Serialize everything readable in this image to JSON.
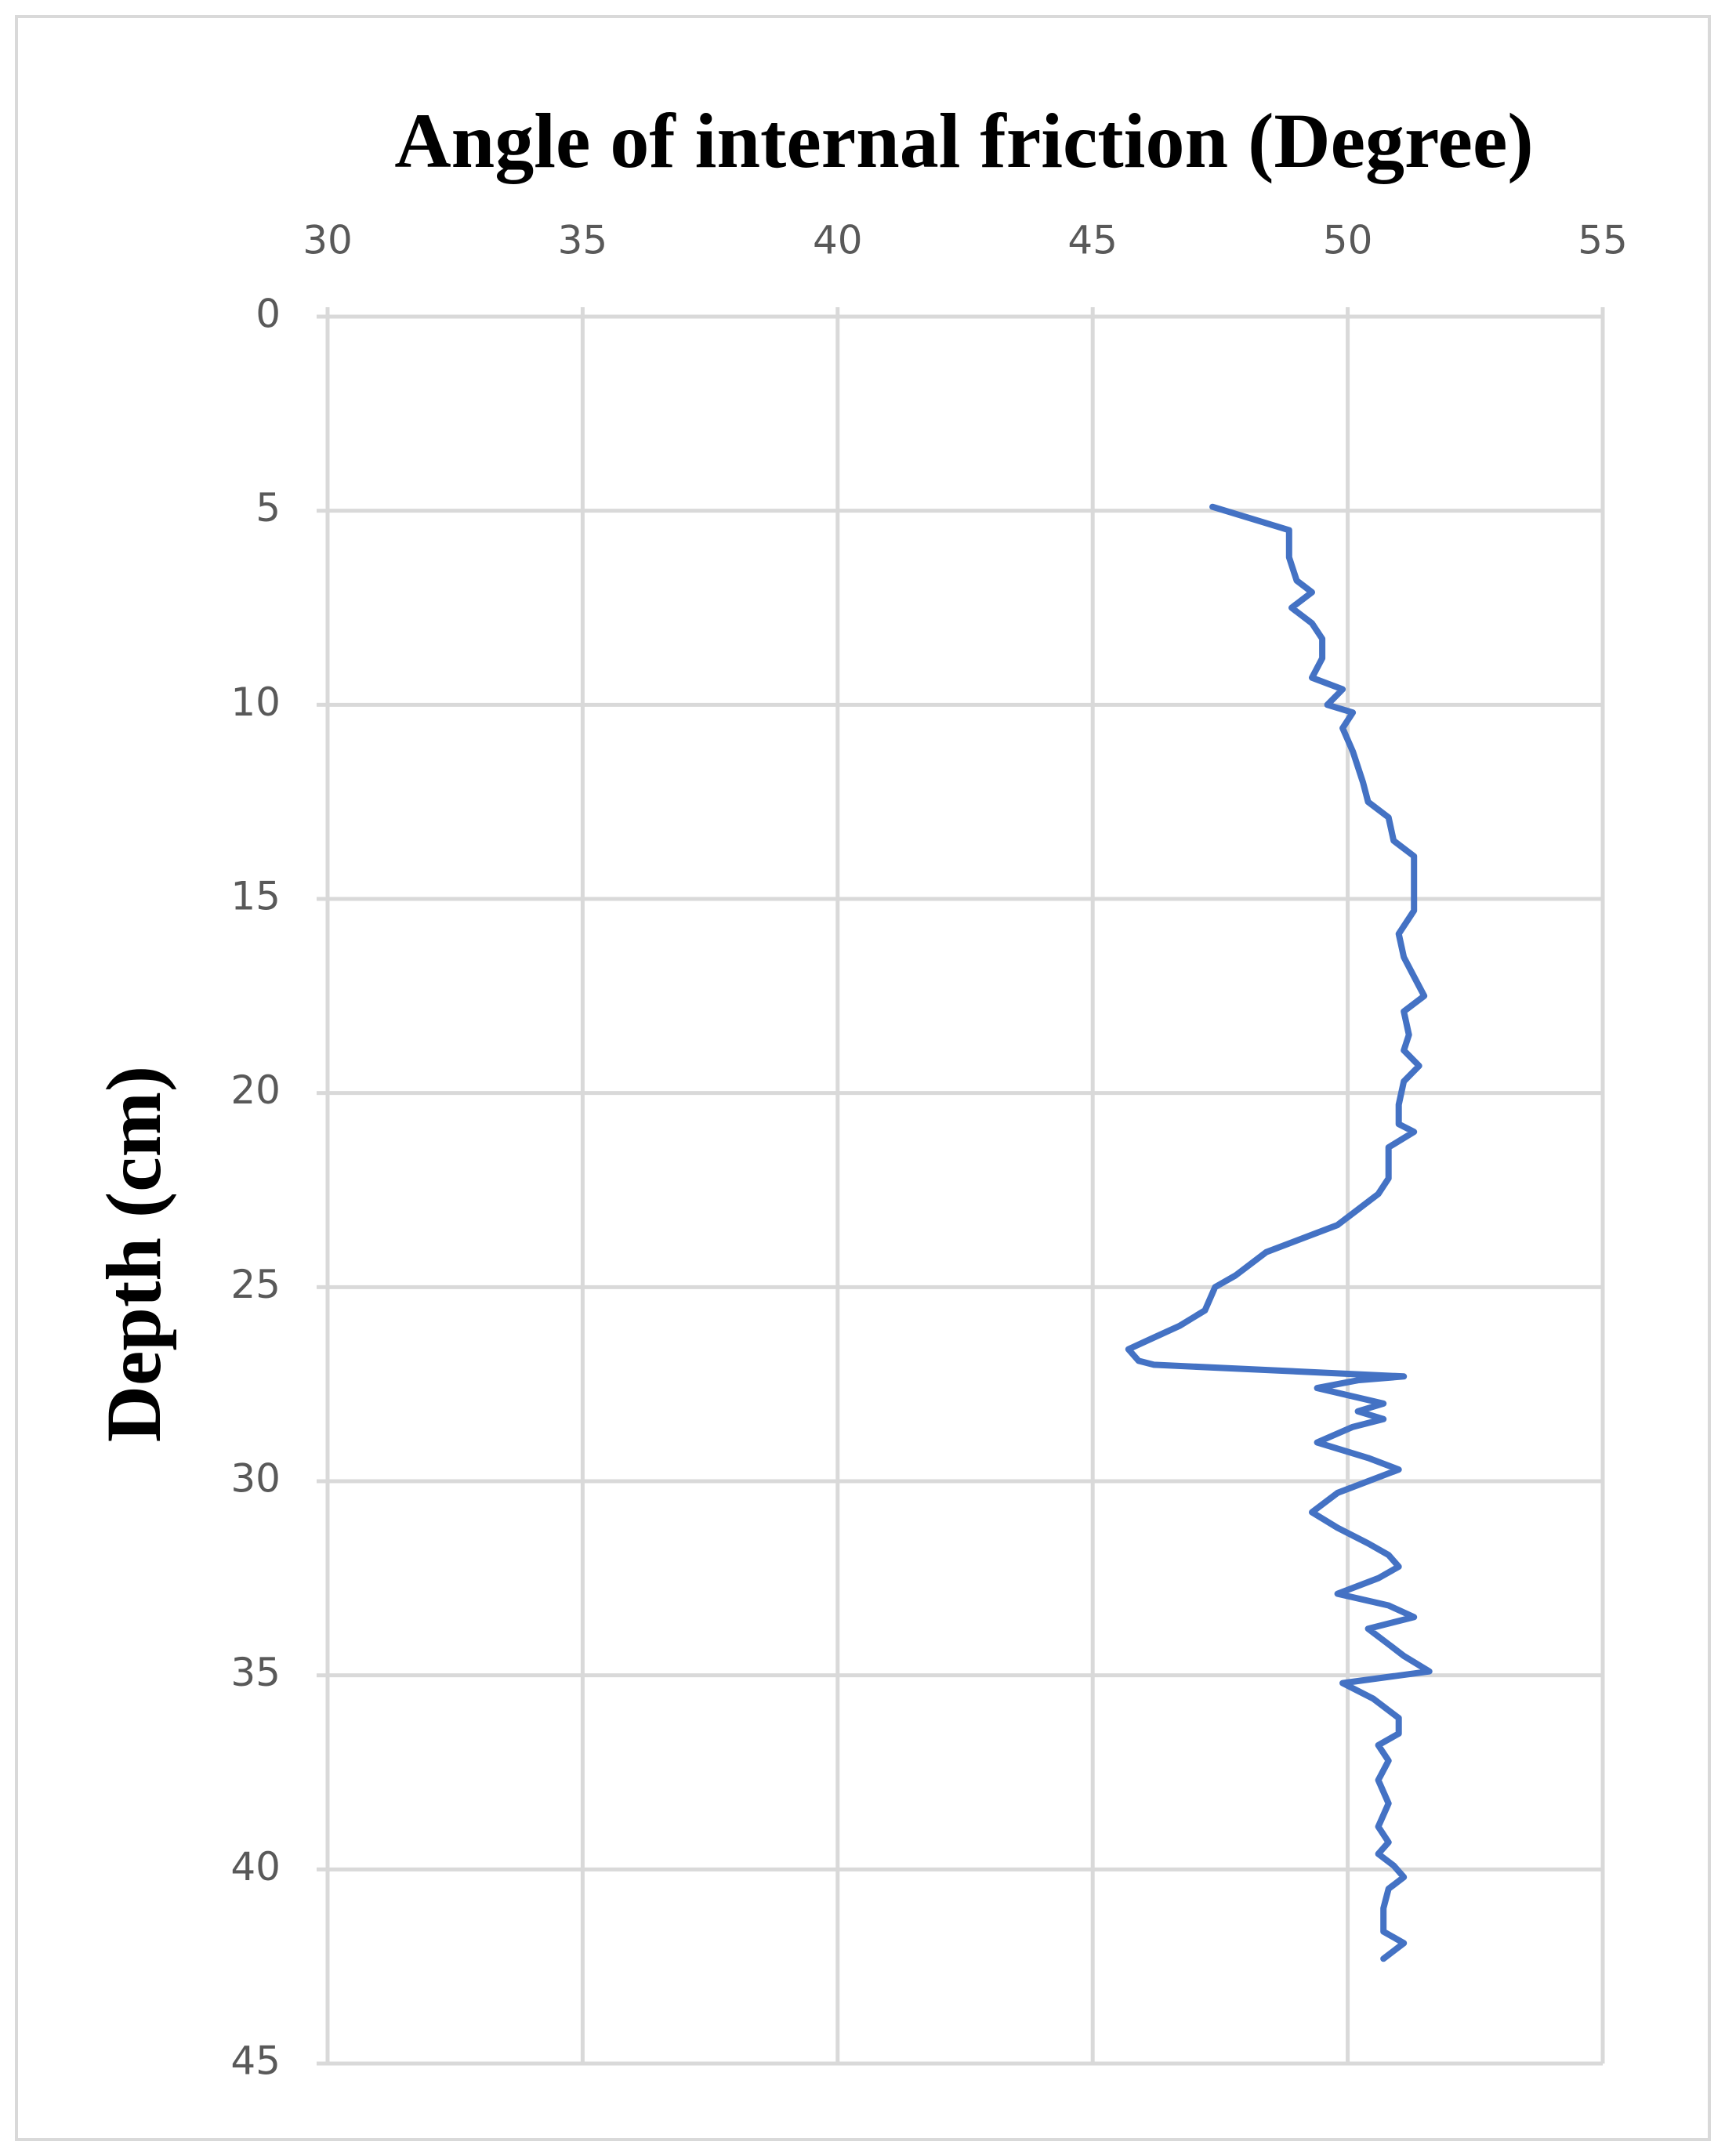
{
  "chart_data": {
    "type": "line",
    "title": "Angle of internal friction (Degree)",
    "ylabel": "Depth (cm)",
    "xlim": [
      30,
      55
    ],
    "xticks": [
      30,
      35,
      40,
      45,
      50,
      55
    ],
    "ylim": [
      0,
      45
    ],
    "yticks": [
      0,
      5,
      10,
      15,
      20,
      25,
      30,
      35,
      40,
      45
    ],
    "y_inverted": true,
    "x_axis_position": "top",
    "grid": true,
    "color": "#4472c4",
    "x": [
      47.35,
      48.85,
      48.85,
      49.0,
      49.3,
      48.9,
      49.3,
      49.5,
      49.5,
      49.3,
      49.9,
      49.6,
      50.1,
      49.9,
      50.1,
      50.3,
      50.4,
      50.8,
      50.9,
      51.3,
      51.3,
      51.3,
      51.0,
      51.1,
      51.3,
      51.5,
      51.1,
      51.2,
      51.1,
      51.4,
      51.1,
      51.0,
      51.0,
      51.3,
      50.8,
      50.8,
      50.6,
      50.2,
      49.8,
      49.4,
      48.4,
      48.2,
      47.8,
      47.4,
      47.2,
      46.7,
      46.2,
      45.7,
      45.9,
      46.2,
      51.1,
      50.2,
      49.4,
      50.7,
      50.2,
      50.7,
      50.1,
      49.4,
      50.4,
      51.0,
      49.8,
      49.3,
      49.8,
      50.4,
      50.8,
      51.0,
      50.6,
      49.8,
      50.8,
      51.3,
      50.4,
      50.8,
      51.1,
      51.6,
      49.9,
      50.5,
      51.0,
      51.0,
      50.6,
      50.8,
      50.6,
      50.8,
      50.6,
      50.8,
      50.6,
      50.9,
      51.1,
      50.8,
      50.7,
      50.7,
      51.1,
      50.7
    ],
    "y": [
      4.9,
      5.5,
      6.2,
      6.8,
      7.1,
      7.5,
      7.9,
      8.3,
      8.8,
      9.3,
      9.6,
      10.0,
      10.2,
      10.6,
      11.2,
      12.0,
      12.5,
      12.9,
      13.5,
      13.9,
      14.8,
      15.3,
      15.9,
      16.5,
      17.0,
      17.5,
      17.9,
      18.5,
      18.9,
      19.3,
      19.7,
      20.3,
      20.8,
      21.0,
      21.4,
      22.2,
      22.6,
      23.0,
      23.4,
      23.6,
      24.1,
      24.3,
      24.7,
      25.0,
      25.6,
      26.0,
      26.3,
      26.6,
      26.9,
      27.0,
      27.3,
      27.4,
      27.6,
      28.0,
      28.2,
      28.4,
      28.6,
      29.0,
      29.4,
      29.7,
      30.3,
      30.8,
      31.2,
      31.6,
      31.9,
      32.2,
      32.5,
      32.9,
      33.2,
      33.5,
      33.8,
      34.2,
      34.5,
      34.9,
      35.2,
      35.6,
      36.1,
      36.5,
      36.8,
      37.2,
      37.7,
      38.3,
      38.9,
      39.3,
      39.6,
      39.9,
      40.2,
      40.5,
      41.0,
      41.6,
      41.9,
      42.3
    ]
  }
}
